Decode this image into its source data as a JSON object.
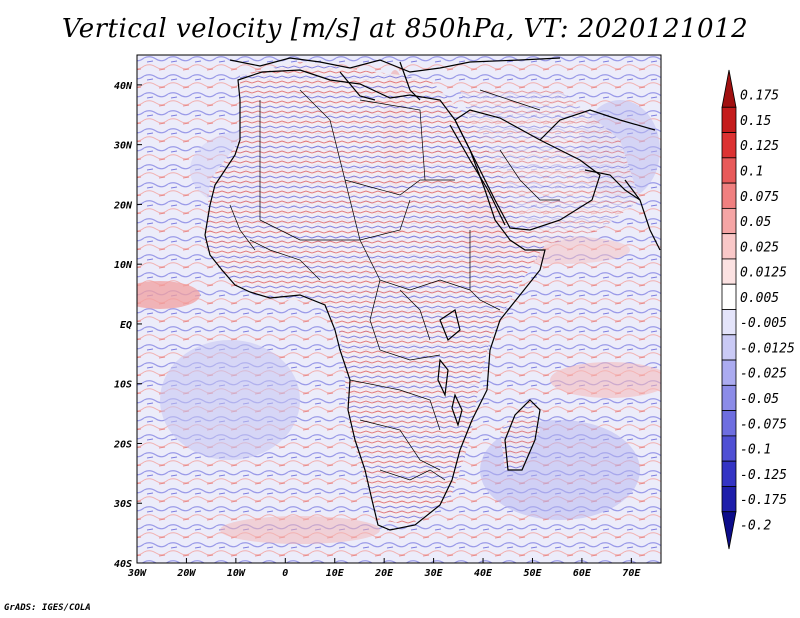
{
  "title": "Vertical velocity [m/s] at 850hPa, VT: 2020121012",
  "credit": "GrADS: IGES/COLA",
  "axes": {
    "lon_labels": [
      "30W",
      "20W",
      "10W",
      "0",
      "10E",
      "20E",
      "30E",
      "40E",
      "50E",
      "60E",
      "70E"
    ],
    "lon_values": [
      -30,
      -20,
      -10,
      0,
      10,
      20,
      30,
      40,
      50,
      60,
      70
    ],
    "lat_labels": [
      "40N",
      "30N",
      "20N",
      "10N",
      "EQ",
      "10S",
      "20S",
      "30S",
      "40S"
    ],
    "lat_values": [
      40,
      30,
      20,
      10,
      0,
      -10,
      -20,
      -30,
      -40
    ],
    "lon_range": [
      -30,
      76
    ],
    "lat_range": [
      -40,
      45
    ]
  },
  "colorbar": {
    "labels": [
      "0.175",
      "0.15",
      "0.125",
      "0.1",
      "0.075",
      "0.05",
      "0.025",
      "0.0125",
      "0.005",
      "-0.005",
      "-0.0125",
      "-0.025",
      "-0.05",
      "-0.075",
      "-0.1",
      "-0.125",
      "-0.175",
      "-0.2"
    ],
    "colors": [
      "#a01010",
      "#c41c1c",
      "#dc3232",
      "#e85a5a",
      "#f08080",
      "#f5a5a5",
      "#f9c8c8",
      "#fce2e2",
      "#ffffff",
      "#e4e4fa",
      "#cacaf5",
      "#ababf0",
      "#8c8ce8",
      "#6e6ee0",
      "#5050d4",
      "#3434c4",
      "#1e1eaa",
      "#0c0c8a"
    ]
  },
  "colors": {
    "background": "#ffffff",
    "coast": "#000000",
    "field_pos": "#e05050",
    "field_neg": "#5a5ae0"
  }
}
